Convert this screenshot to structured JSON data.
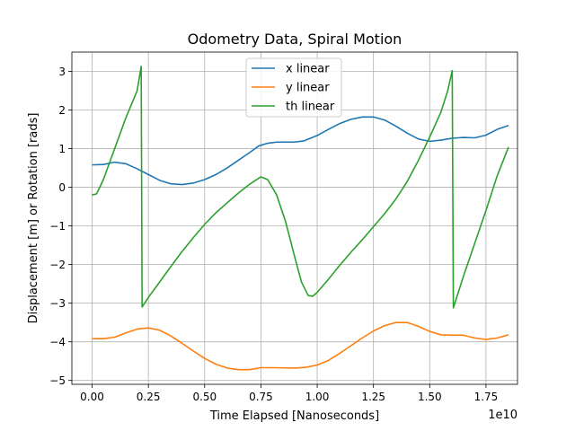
{
  "chart_data": {
    "type": "line",
    "title": "Odometry Data, Spiral Motion",
    "xlabel": "Time Elapsed [Nanoseconds]",
    "ylabel": "Displacement [m] or Rotation [rads]",
    "x_offset_label": "1e10",
    "xlim": [
      -0.09,
      1.89
    ],
    "ylim": [
      -5.1,
      3.5
    ],
    "x_ticks": [
      0.0,
      0.25,
      0.5,
      0.75,
      1.0,
      1.25,
      1.5,
      1.75
    ],
    "x_tick_labels": [
      "0.00",
      "0.25",
      "0.50",
      "0.75",
      "1.00",
      "1.25",
      "1.50",
      "1.75"
    ],
    "y_ticks": [
      -5,
      -4,
      -3,
      -2,
      -1,
      0,
      1,
      2,
      3
    ],
    "y_tick_labels": [
      "−5",
      "−4",
      "−3",
      "−2",
      "−1",
      "0",
      "1",
      "2",
      "3"
    ],
    "grid": true,
    "legend_position": "top-center",
    "series": [
      {
        "name": "x linear",
        "color": "#1f77b4",
        "points": [
          [
            0.0,
            0.58
          ],
          [
            0.05,
            0.59
          ],
          [
            0.1,
            0.65
          ],
          [
            0.15,
            0.61
          ],
          [
            0.2,
            0.48
          ],
          [
            0.25,
            0.33
          ],
          [
            0.3,
            0.18
          ],
          [
            0.35,
            0.09
          ],
          [
            0.4,
            0.07
          ],
          [
            0.45,
            0.11
          ],
          [
            0.5,
            0.2
          ],
          [
            0.55,
            0.33
          ],
          [
            0.6,
            0.5
          ],
          [
            0.65,
            0.7
          ],
          [
            0.7,
            0.9
          ],
          [
            0.74,
            1.07
          ],
          [
            0.78,
            1.14
          ],
          [
            0.82,
            1.17
          ],
          [
            0.9,
            1.17
          ],
          [
            0.94,
            1.2
          ],
          [
            1.0,
            1.34
          ],
          [
            1.05,
            1.5
          ],
          [
            1.1,
            1.65
          ],
          [
            1.15,
            1.76
          ],
          [
            1.2,
            1.82
          ],
          [
            1.25,
            1.82
          ],
          [
            1.3,
            1.74
          ],
          [
            1.35,
            1.58
          ],
          [
            1.4,
            1.4
          ],
          [
            1.45,
            1.25
          ],
          [
            1.5,
            1.19
          ],
          [
            1.55,
            1.22
          ],
          [
            1.6,
            1.27
          ],
          [
            1.65,
            1.29
          ],
          [
            1.7,
            1.28
          ],
          [
            1.75,
            1.35
          ],
          [
            1.8,
            1.5
          ],
          [
            1.85,
            1.6
          ]
        ]
      },
      {
        "name": "y linear",
        "color": "#ff7f0e",
        "points": [
          [
            0.0,
            -3.92
          ],
          [
            0.05,
            -3.92
          ],
          [
            0.1,
            -3.88
          ],
          [
            0.15,
            -3.77
          ],
          [
            0.2,
            -3.67
          ],
          [
            0.25,
            -3.64
          ],
          [
            0.3,
            -3.7
          ],
          [
            0.35,
            -3.85
          ],
          [
            0.4,
            -4.04
          ],
          [
            0.45,
            -4.24
          ],
          [
            0.5,
            -4.43
          ],
          [
            0.55,
            -4.58
          ],
          [
            0.6,
            -4.68
          ],
          [
            0.65,
            -4.72
          ],
          [
            0.7,
            -4.72
          ],
          [
            0.75,
            -4.67
          ],
          [
            0.8,
            -4.67
          ],
          [
            0.9,
            -4.68
          ],
          [
            0.95,
            -4.66
          ],
          [
            1.0,
            -4.6
          ],
          [
            1.05,
            -4.48
          ],
          [
            1.1,
            -4.3
          ],
          [
            1.15,
            -4.1
          ],
          [
            1.2,
            -3.9
          ],
          [
            1.25,
            -3.72
          ],
          [
            1.3,
            -3.58
          ],
          [
            1.35,
            -3.5
          ],
          [
            1.4,
            -3.5
          ],
          [
            1.45,
            -3.6
          ],
          [
            1.5,
            -3.73
          ],
          [
            1.55,
            -3.82
          ],
          [
            1.6,
            -3.83
          ],
          [
            1.65,
            -3.83
          ],
          [
            1.7,
            -3.9
          ],
          [
            1.75,
            -3.94
          ],
          [
            1.8,
            -3.9
          ],
          [
            1.85,
            -3.82
          ]
        ]
      },
      {
        "name": "th linear",
        "color": "#2ca02c",
        "points": [
          [
            0.0,
            -0.2
          ],
          [
            0.02,
            -0.17
          ],
          [
            0.05,
            0.2
          ],
          [
            0.1,
            1.0
          ],
          [
            0.15,
            1.8
          ],
          [
            0.2,
            2.5
          ],
          [
            0.218,
            3.13
          ],
          [
            0.222,
            -3.1
          ],
          [
            0.25,
            -2.85
          ],
          [
            0.3,
            -2.45
          ],
          [
            0.35,
            -2.05
          ],
          [
            0.4,
            -1.66
          ],
          [
            0.45,
            -1.3
          ],
          [
            0.5,
            -0.96
          ],
          [
            0.55,
            -0.66
          ],
          [
            0.6,
            -0.4
          ],
          [
            0.65,
            -0.15
          ],
          [
            0.7,
            0.08
          ],
          [
            0.75,
            0.27
          ],
          [
            0.78,
            0.2
          ],
          [
            0.82,
            -0.2
          ],
          [
            0.86,
            -0.9
          ],
          [
            0.9,
            -1.8
          ],
          [
            0.93,
            -2.45
          ],
          [
            0.96,
            -2.8
          ],
          [
            0.98,
            -2.82
          ],
          [
            1.0,
            -2.72
          ],
          [
            1.05,
            -2.38
          ],
          [
            1.1,
            -2.02
          ],
          [
            1.15,
            -1.68
          ],
          [
            1.2,
            -1.36
          ],
          [
            1.25,
            -1.02
          ],
          [
            1.3,
            -0.68
          ],
          [
            1.35,
            -0.3
          ],
          [
            1.4,
            0.15
          ],
          [
            1.45,
            0.7
          ],
          [
            1.5,
            1.3
          ],
          [
            1.55,
            1.95
          ],
          [
            1.58,
            2.5
          ],
          [
            1.6,
            3.02
          ],
          [
            1.605,
            -3.12
          ],
          [
            1.65,
            -2.3
          ],
          [
            1.7,
            -1.45
          ],
          [
            1.75,
            -0.6
          ],
          [
            1.8,
            0.3
          ],
          [
            1.85,
            1.04
          ]
        ]
      }
    ]
  }
}
